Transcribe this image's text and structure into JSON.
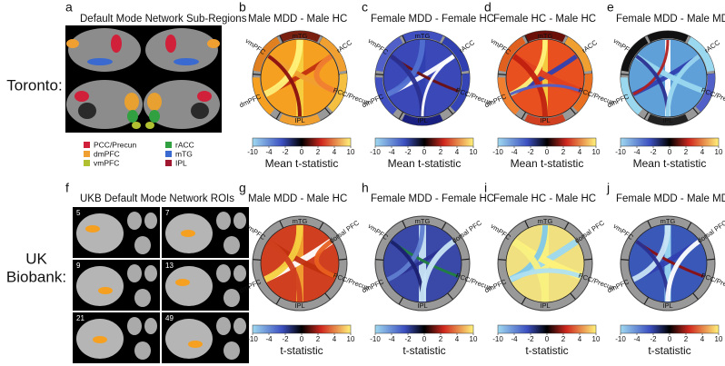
{
  "row_labels": {
    "toronto": "Toronto:",
    "ukb": [
      "UK",
      "Biobank:"
    ]
  },
  "panel_a": {
    "letter": "a",
    "title": "Default Mode Network Sub-Regions",
    "legend": [
      "PCC/Precun",
      "dmPFC",
      "vmPFC",
      "rACC",
      "mTG",
      "IPL"
    ]
  },
  "panel_f": {
    "letter": "f",
    "title": "UKB Default Mode Network ROIs",
    "slices": [
      "5",
      "7",
      "9",
      "13",
      "21",
      "49"
    ]
  },
  "toronto": {
    "nodes": [
      "mTG",
      "rACC",
      "PCC/Precun",
      "IPL",
      "dmPFC",
      "vmPFC"
    ],
    "colorbar_ticks": [
      "-10",
      "-4",
      "-2",
      "0",
      "2",
      "4",
      "10"
    ],
    "colorbar_label": "Mean t-statistic",
    "panels": [
      {
        "letter": "b",
        "title": "Male MDD - Male HC"
      },
      {
        "letter": "c",
        "title": "Female MDD - Female HC"
      },
      {
        "letter": "d",
        "title": "Female HC - Male HC"
      },
      {
        "letter": "e",
        "title": "Female MDD - Male MDD"
      }
    ]
  },
  "ukb": {
    "nodes": [
      "mTG",
      "dorsal PFC",
      "PCC/Precun",
      "IPL",
      "dmPFC",
      "vmPFC"
    ],
    "colorbar_ticks": [
      "-10",
      "-4",
      "-2",
      "0",
      "2",
      "4",
      "10"
    ],
    "colorbar_label": "t-statistic",
    "panels": [
      {
        "letter": "g",
        "title": "Male MDD - Male HC"
      },
      {
        "letter": "h",
        "title": "Female MDD - Female HC"
      },
      {
        "letter": "i",
        "title": "Female HC - Male HC"
      },
      {
        "letter": "j",
        "title": "Female MDD - Male MDD"
      }
    ]
  }
}
